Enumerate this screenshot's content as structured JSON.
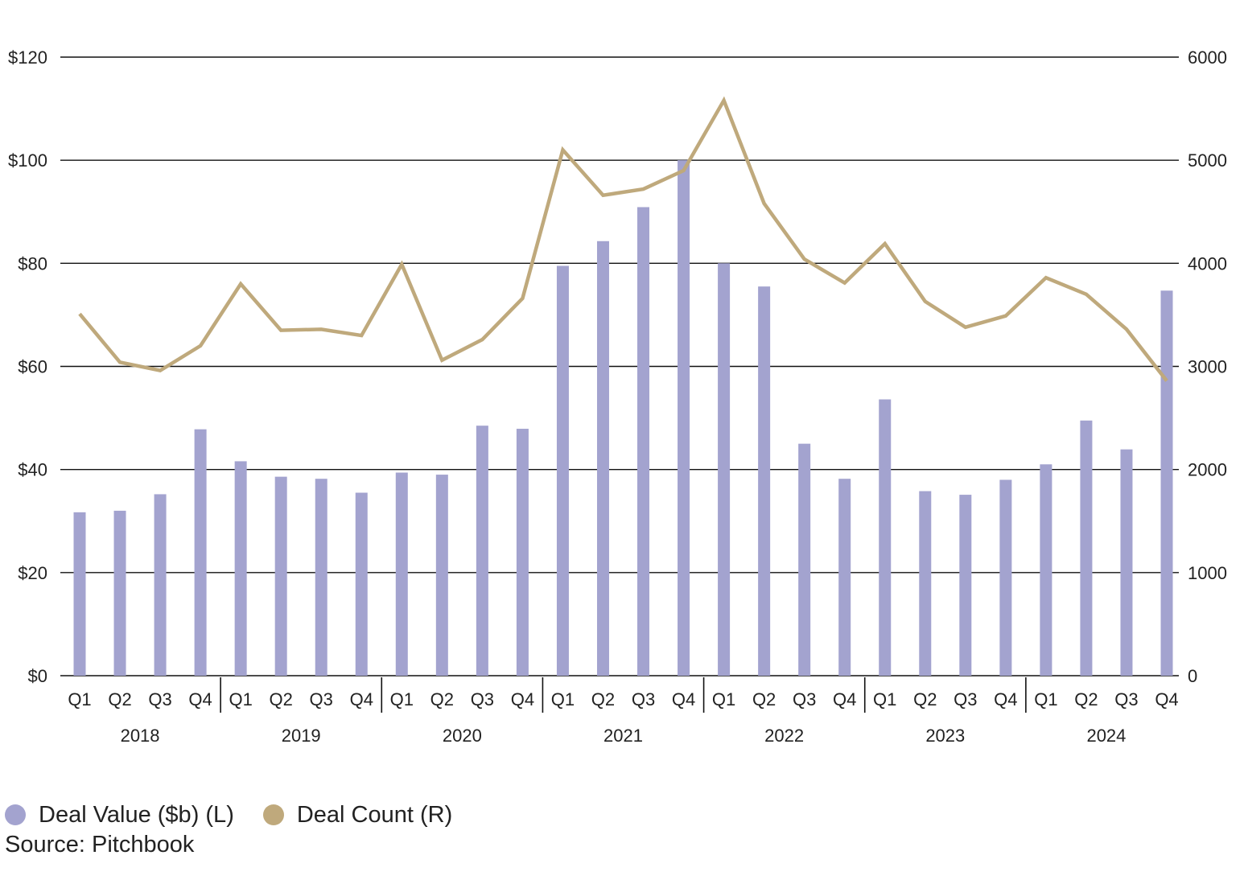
{
  "chart_data": {
    "type": "bar",
    "title": "",
    "quarter_labels": [
      "Q1",
      "Q2",
      "Q3",
      "Q4",
      "Q1",
      "Q2",
      "Q3",
      "Q4",
      "Q1",
      "Q2",
      "Q3",
      "Q4",
      "Q1",
      "Q2",
      "Q3",
      "Q4",
      "Q1",
      "Q2",
      "Q3",
      "Q4",
      "Q1",
      "Q2",
      "Q3",
      "Q4",
      "Q1",
      "Q2",
      "Q3",
      "Q4"
    ],
    "years": [
      "2018",
      "2019",
      "2020",
      "2021",
      "2022",
      "2023",
      "2024"
    ],
    "y_left": {
      "ylim": [
        0,
        120
      ],
      "ticks": [
        0,
        20,
        40,
        60,
        80,
        100,
        120
      ],
      "tick_labels": [
        "$0",
        "$20",
        "$40",
        "$60",
        "$80",
        "$100",
        "$120"
      ]
    },
    "y_right": {
      "ylim": [
        0,
        6000
      ],
      "ticks": [
        0,
        1000,
        2000,
        3000,
        4000,
        5000,
        6000
      ],
      "tick_labels": [
        "0",
        "1000",
        "2000",
        "3000",
        "4000",
        "5000",
        "6000"
      ]
    },
    "grid": true,
    "series": [
      {
        "name": "Deal Value ($b) (L)",
        "type": "bar",
        "axis": "left",
        "color": "#a3a3cf",
        "values": [
          31.7,
          32.0,
          35.2,
          47.8,
          41.6,
          38.6,
          38.2,
          35.5,
          39.4,
          39.0,
          48.5,
          47.9,
          79.5,
          84.3,
          90.9,
          100.0,
          80.0,
          75.5,
          45.0,
          38.2,
          53.6,
          35.8,
          35.1,
          38.0,
          41.0,
          49.5,
          43.9,
          74.7
        ]
      },
      {
        "name": "Deal Count (R)",
        "type": "line",
        "axis": "right",
        "color": "#bfa97c",
        "values": [
          3510,
          3040,
          2960,
          3200,
          3800,
          3350,
          3360,
          3300,
          3990,
          3060,
          3260,
          3660,
          5100,
          4660,
          4720,
          4900,
          5580,
          4580,
          4040,
          3810,
          4190,
          3630,
          3380,
          3490,
          3860,
          3700,
          3360,
          2860
        ]
      }
    ],
    "legend_position": "bottom-left"
  },
  "source": "Source: Pitchbook"
}
